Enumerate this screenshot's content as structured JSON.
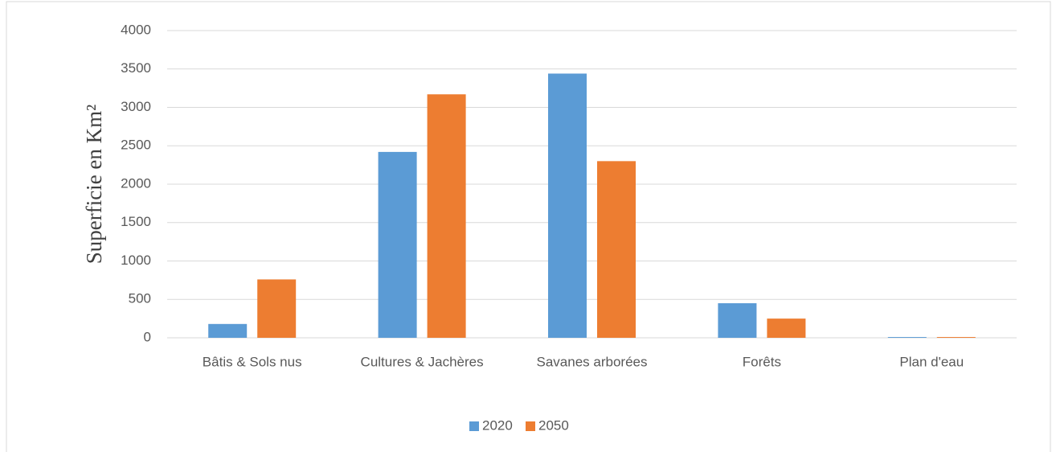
{
  "chart_data": {
    "type": "bar",
    "y_label": "Superficie en Km²",
    "categories": [
      "Bâtis & Sols nus",
      "Cultures & Jachères",
      "Savanes arborées",
      "Forêts",
      "Plan d'eau"
    ],
    "series": [
      {
        "name": "2020",
        "color": "#5b9bd5",
        "values": [
          180,
          2420,
          3440,
          450,
          10
        ]
      },
      {
        "name": "2050",
        "color": "#ed7d31",
        "values": [
          760,
          3170,
          2300,
          250,
          10
        ]
      }
    ],
    "ylim": [
      0,
      4000
    ],
    "yticks": [
      0,
      500,
      1000,
      1500,
      2000,
      2500,
      3000,
      3500,
      4000
    ],
    "grid": true,
    "legend": "bottom"
  }
}
